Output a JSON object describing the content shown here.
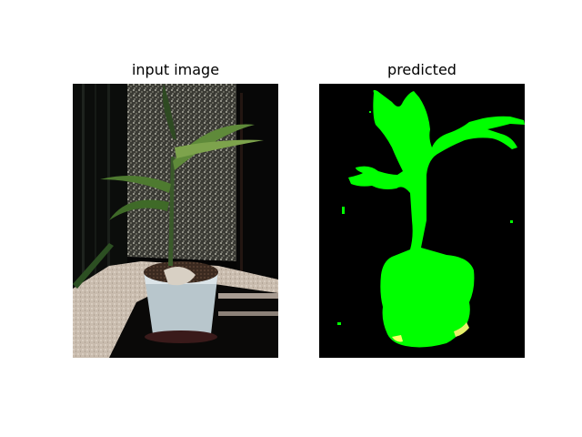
{
  "panels": {
    "left": {
      "title": "input image",
      "icon": "plant-photo"
    },
    "right": {
      "title": "predicted",
      "icon": "segmentation-mask"
    }
  },
  "colors": {
    "background": "#ffffff",
    "mask_plant": "#00ff00",
    "mask_background": "#000000",
    "mask_other": "#ffff66"
  }
}
